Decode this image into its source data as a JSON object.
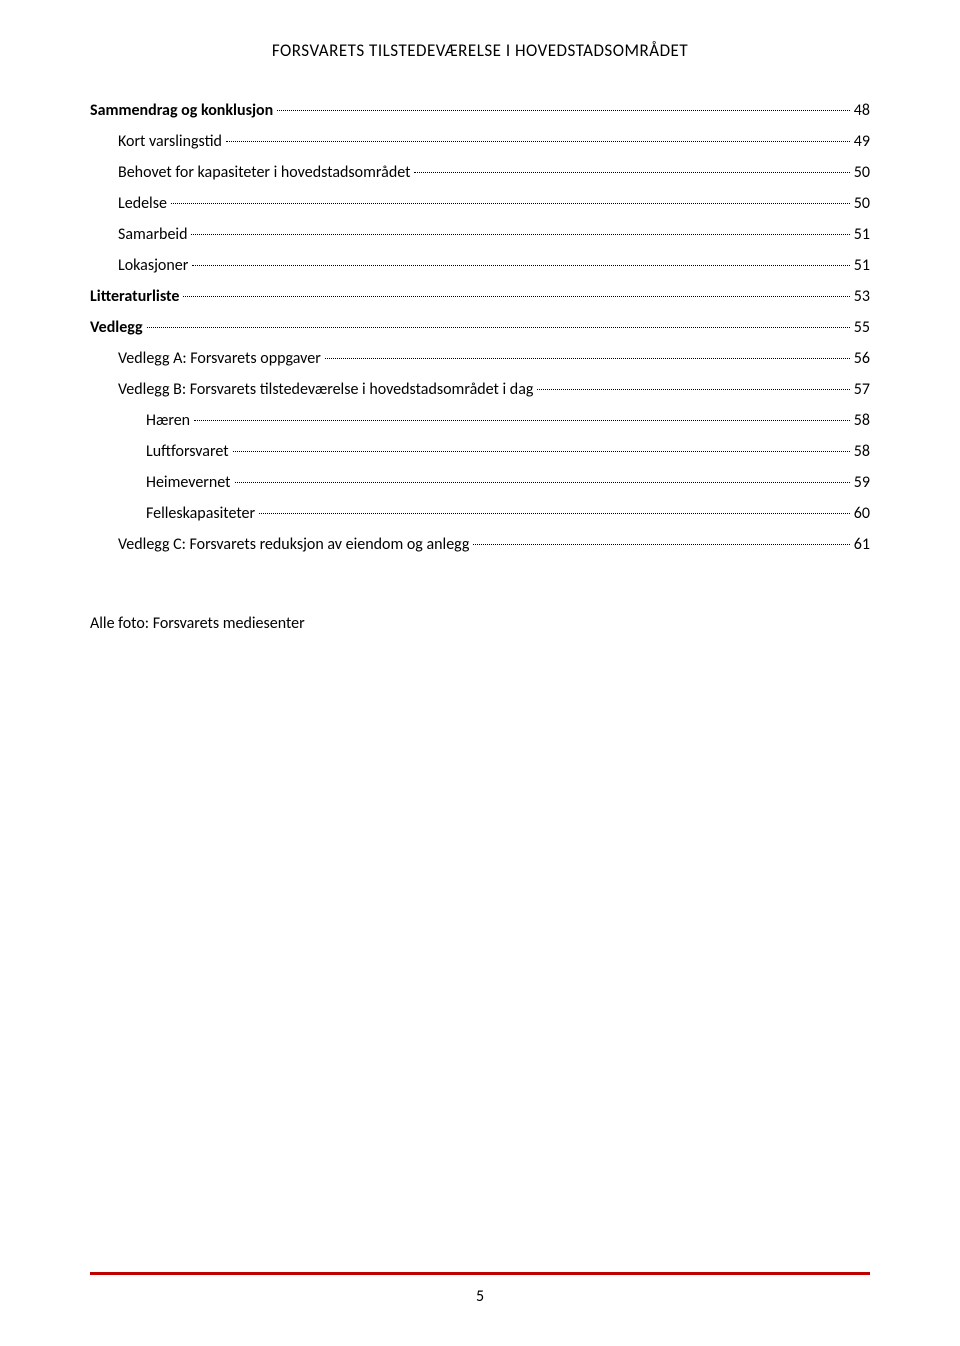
{
  "header": {
    "title": "FORSVARETS TILSTEDEVÆRELSE I HOVEDSTADSOMRÅDET"
  },
  "toc": {
    "entries": [
      {
        "label": "Sammendrag og konklusjon",
        "page": "48",
        "bold": true,
        "indent": 0
      },
      {
        "label": "Kort varslingstid",
        "page": "49",
        "bold": false,
        "indent": 1
      },
      {
        "label": "Behovet for kapasiteter i hovedstadsområdet",
        "page": "50",
        "bold": false,
        "indent": 1
      },
      {
        "label": "Ledelse",
        "page": "50",
        "bold": false,
        "indent": 1
      },
      {
        "label": "Samarbeid",
        "page": "51",
        "bold": false,
        "indent": 1
      },
      {
        "label": "Lokasjoner",
        "page": "51",
        "bold": false,
        "indent": 1
      },
      {
        "label": "Litteraturliste",
        "page": "53",
        "bold": true,
        "indent": 0
      },
      {
        "label": "Vedlegg",
        "page": "55",
        "bold": true,
        "indent": 0
      },
      {
        "label": "Vedlegg A: Forsvarets oppgaver",
        "page": "56",
        "bold": false,
        "indent": 1
      },
      {
        "label": "Vedlegg B: Forsvarets tilstedeværelse i hovedstadsområdet i dag",
        "page": "57",
        "bold": false,
        "indent": 1
      },
      {
        "label": "Hæren",
        "page": "58",
        "bold": false,
        "indent": 2
      },
      {
        "label": "Luftforsvaret",
        "page": "58",
        "bold": false,
        "indent": 2
      },
      {
        "label": "Heimevernet",
        "page": "59",
        "bold": false,
        "indent": 2
      },
      {
        "label": "Felleskapasiteter",
        "page": "60",
        "bold": false,
        "indent": 2
      },
      {
        "label": "Vedlegg C: Forsvarets reduksjon av eiendom og anlegg",
        "page": "61",
        "bold": false,
        "indent": 1
      }
    ]
  },
  "footer_text": "Alle foto: Forsvarets mediesenter",
  "page_number": "5",
  "colors": {
    "footer_line": "#c00000",
    "text": "#000000",
    "background": "#ffffff"
  }
}
